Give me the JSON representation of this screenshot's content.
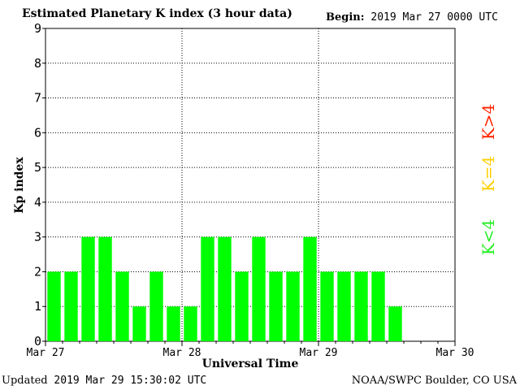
{
  "header": {
    "title": "Estimated Planetary K index (3 hour data)",
    "begin_label": "Begin:",
    "begin_value": "2019 Mar 27 0000 UTC"
  },
  "footer": {
    "updated_label": "Updated",
    "updated_value": "2019 Mar 29 15:30:02 UTC",
    "credit": "NOAA/SWPC Boulder, CO USA"
  },
  "legend": {
    "red": {
      "text": "K>4",
      "color": "#ff2200"
    },
    "yellow": {
      "text": "K=4",
      "color": "#ffd000"
    },
    "green": {
      "text": "K<4",
      "color": "#22ee22"
    }
  },
  "chart_data": {
    "type": "bar",
    "title": "Estimated Planetary K index (3 hour data)",
    "xlabel": "Universal Time",
    "ylabel": "Kp index",
    "ylim": [
      0,
      9
    ],
    "yticks": [
      0,
      1,
      2,
      3,
      4,
      5,
      6,
      7,
      8,
      9
    ],
    "x_tick_labels": [
      "Mar 27",
      "Mar 28",
      "Mar 29",
      "Mar 30"
    ],
    "interval_hours": 3,
    "values": [
      2,
      2,
      3,
      3,
      2,
      1,
      2,
      1,
      1,
      3,
      3,
      2,
      3,
      2,
      2,
      3,
      2,
      2,
      2,
      2,
      1
    ],
    "bar_color": "#00ff00",
    "grid": true,
    "grid_style": "dotted"
  }
}
